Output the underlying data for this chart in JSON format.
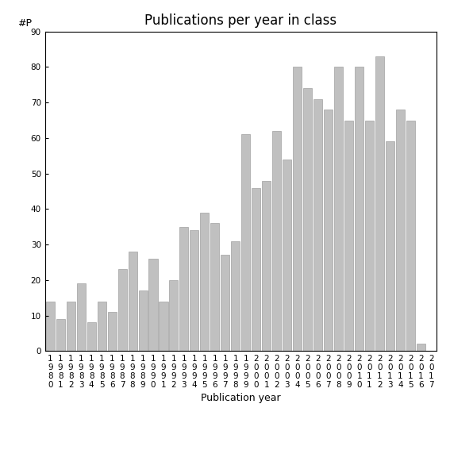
{
  "title": "Publications per year in class",
  "xlabel": "Publication year",
  "ylabel": "#P",
  "ylim": [
    0,
    90
  ],
  "yticks": [
    0,
    10,
    20,
    30,
    40,
    50,
    60,
    70,
    80,
    90
  ],
  "categories": [
    "1980",
    "1981",
    "1982",
    "1983",
    "1984",
    "1985",
    "1986",
    "1987",
    "1988",
    "1989",
    "1990",
    "1991",
    "1992",
    "1993",
    "1994",
    "1995",
    "1996",
    "1997",
    "1998",
    "1999",
    "2000",
    "2001",
    "2002",
    "2003",
    "2004",
    "2005",
    "2006",
    "2007",
    "2008",
    "2009",
    "2010",
    "2011",
    "2012",
    "2013",
    "2014",
    "2015",
    "2016",
    "2017"
  ],
  "values": [
    14,
    9,
    14,
    19,
    8,
    14,
    11,
    23,
    28,
    17,
    26,
    14,
    20,
    35,
    34,
    39,
    36,
    27,
    31,
    61,
    46,
    48,
    62,
    54,
    80,
    74,
    71,
    68,
    80,
    65,
    80,
    65,
    83,
    59,
    68,
    65,
    2,
    0
  ],
  "bar_color": "#c0c0c0",
  "bar_edgecolor": "#909090",
  "background_color": "#ffffff",
  "title_fontsize": 12,
  "axis_label_fontsize": 9,
  "tick_fontsize": 7.5
}
